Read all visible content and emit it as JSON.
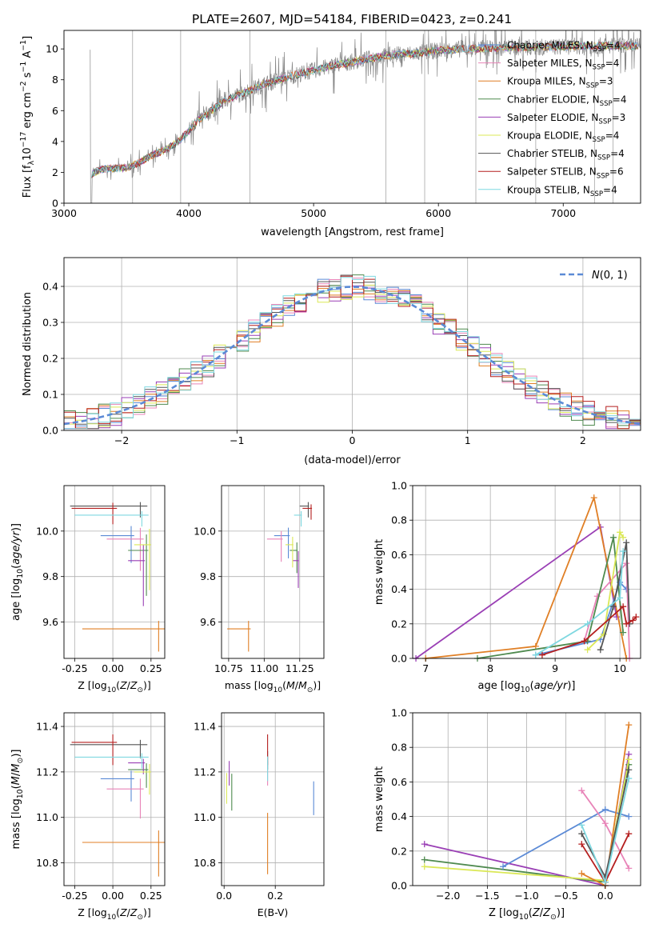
{
  "figure": {
    "title": "PLATE=2607, MJD=54184, FIBERID=0423, z=0.241"
  },
  "colors": {
    "chabrier_miles": "#5b8ad6",
    "salpeter_miles": "#e884b8",
    "kroupa_miles": "#e07f25",
    "chabrier_elodie": "#4f8a4f",
    "salpeter_elodie": "#9a3fb5",
    "kroupa_elodie": "#dbe857",
    "chabrier_stelib": "#555555",
    "salpeter_stelib": "#b51f1f",
    "kroupa_stelib": "#7fd8e0",
    "data": "#888888"
  },
  "chart_data": [
    {
      "id": "spectrum",
      "type": "line",
      "xlabel": "wavelength [Angstrom, rest frame]",
      "ylabel": "Flux [f_λ10^-17 erg cm^-2 s^-1 A^-1]",
      "xlim": [
        3000,
        7620
      ],
      "ylim": [
        0,
        11.2
      ],
      "xticks": [
        3000,
        4000,
        5000,
        6000,
        7000
      ],
      "yticks": [
        0,
        2,
        4,
        6,
        8,
        10
      ],
      "grid": false,
      "legend_position": "right",
      "legend": [
        "Chabrier MILES, N_SSP=4",
        "Salpeter MILES, N_SSP=4",
        "Kroupa MILES, N_SSP=3",
        "Chabrier ELODIE, N_SSP=4",
        "Salpeter ELODIE, N_SSP=3",
        "Kroupa ELODIE, N_SSP=4",
        "Chabrier STELIB, N_SSP=4",
        "Salpeter STELIB, N_SSP=6",
        "Kroupa STELIB, N_SSP=4"
      ],
      "continuum": {
        "x": [
          3220,
          3300,
          3400,
          3500,
          3600,
          3700,
          3800,
          3900,
          3980,
          4050,
          4150,
          4300,
          4450,
          4600,
          4800,
          5000,
          5200,
          5400,
          5600,
          5800,
          6000,
          6200,
          6400,
          6600,
          6800,
          7000,
          7200,
          7400,
          7600
        ],
        "y": [
          1.9,
          2.2,
          2.25,
          2.3,
          2.6,
          3.1,
          3.4,
          3.9,
          4.5,
          5.2,
          5.8,
          6.7,
          7.2,
          7.7,
          8.2,
          8.6,
          9.0,
          9.3,
          9.6,
          9.7,
          9.9,
          10.0,
          10.05,
          10.1,
          10.1,
          10.15,
          10.2,
          10.2,
          10.2
        ]
      }
    },
    {
      "id": "residuals",
      "type": "histogram",
      "xlabel": "(data-model)/error",
      "ylabel": "Normed distribution",
      "xlim": [
        -2.5,
        2.5
      ],
      "ylim": [
        0,
        0.48
      ],
      "xticks": [
        -2,
        -1,
        0,
        1,
        2
      ],
      "yticks": [
        0.0,
        0.1,
        0.2,
        0.3,
        0.4
      ],
      "grid": true,
      "legend_position": "top-right",
      "reference_curve": "N(0,1)"
    },
    {
      "id": "z_vs_age",
      "type": "scatter",
      "xlabel": "Z [log10(Z/Z⊙)]",
      "ylabel": "age  [log10(age/yr)]",
      "xlim": [
        -0.32,
        0.34
      ],
      "ylim": [
        9.44,
        10.2
      ],
      "xticks": [
        -0.25,
        0.0,
        0.25
      ],
      "yticks": [
        9.6,
        9.8,
        10.0
      ],
      "grid": true,
      "points": [
        {
          "x": 0.12,
          "y": 9.98,
          "xerr": 0.2,
          "yerr": 0.12,
          "color": "chabrier_miles"
        },
        {
          "x": 0.18,
          "y": 9.965,
          "xerr": 0.22,
          "yerr": 0.14,
          "color": "salpeter_miles"
        },
        {
          "x": 0.3,
          "y": 9.57,
          "xerr": 0.5,
          "yerr": 0.1,
          "color": "kroupa_miles"
        },
        {
          "x": 0.22,
          "y": 9.915,
          "xerr": 0.12,
          "yerr": 0.2,
          "color": "chabrier_elodie"
        },
        {
          "x": 0.2,
          "y": 9.87,
          "xerr": 0.1,
          "yerr": 0.2,
          "color": "salpeter_elodie"
        },
        {
          "x": 0.24,
          "y": 9.94,
          "xerr": 0.1,
          "yerr": 0.2,
          "color": "kroupa_elodie"
        },
        {
          "x": 0.18,
          "y": 10.11,
          "xerr": 0.46,
          "yerr": 0.05,
          "color": "chabrier_stelib"
        },
        {
          "x": 0.0,
          "y": 10.1,
          "xerr": 0.27,
          "yerr": 0.07,
          "color": "salpeter_stelib"
        },
        {
          "x": 0.19,
          "y": 10.07,
          "xerr": 0.44,
          "yerr": 0.05,
          "color": "kroupa_stelib"
        }
      ]
    },
    {
      "id": "mass_vs_age",
      "type": "scatter",
      "xlabel": "mass [log10(M/M⊙)]",
      "ylabel": "",
      "xlim": [
        10.7,
        11.42
      ],
      "ylim": [
        9.44,
        10.2
      ],
      "xticks": [
        10.75,
        11.0,
        11.25
      ],
      "yticks": [
        9.6,
        9.8,
        10.0
      ],
      "grid": true,
      "points": [
        {
          "x": 11.17,
          "y": 9.98,
          "xerr": 0.1,
          "yerr": 0.1,
          "color": "chabrier_miles"
        },
        {
          "x": 11.12,
          "y": 9.965,
          "xerr": 0.1,
          "yerr": 0.1,
          "color": "salpeter_miles"
        },
        {
          "x": 10.89,
          "y": 9.57,
          "xerr": 0.15,
          "yerr": 0.1,
          "color": "kroupa_miles"
        },
        {
          "x": 11.23,
          "y": 9.915,
          "xerr": 0.05,
          "yerr": 0.1,
          "color": "chabrier_elodie"
        },
        {
          "x": 11.24,
          "y": 9.87,
          "xerr": 0.04,
          "yerr": 0.12,
          "color": "salpeter_elodie"
        },
        {
          "x": 11.2,
          "y": 9.94,
          "xerr": 0.05,
          "yerr": 0.1,
          "color": "kroupa_elodie"
        },
        {
          "x": 11.31,
          "y": 10.11,
          "xerr": 0.06,
          "yerr": 0.05,
          "color": "chabrier_stelib"
        },
        {
          "x": 11.33,
          "y": 10.1,
          "xerr": 0.06,
          "yerr": 0.05,
          "color": "salpeter_stelib"
        },
        {
          "x": 11.26,
          "y": 10.07,
          "xerr": 0.05,
          "yerr": 0.05,
          "color": "kroupa_stelib"
        }
      ]
    },
    {
      "id": "age_vs_weight",
      "type": "line",
      "xlabel": "age  [log10(age/yr)]",
      "ylabel": "mass weight",
      "xlim": [
        6.8,
        10.32
      ],
      "ylim": [
        0,
        1
      ],
      "xticks": [
        7,
        8,
        9,
        10
      ],
      "yticks": [
        0.0,
        0.2,
        0.4,
        0.6,
        0.8,
        1.0
      ],
      "grid": true,
      "series": [
        {
          "color": "salpeter_elodie",
          "x": [
            6.85,
            9.7,
            9.95
          ],
          "y": [
            0.0,
            0.76,
            0.24
          ]
        },
        {
          "color": "kroupa_miles",
          "x": [
            7.0,
            8.7,
            9.6,
            10.1
          ],
          "y": [
            0.0,
            0.07,
            0.93,
            0.0
          ]
        },
        {
          "color": "chabrier_miles",
          "x": [
            8.7,
            9.7,
            10.0,
            10.1
          ],
          "y": [
            0.02,
            0.11,
            0.44,
            0.4
          ]
        },
        {
          "color": "salpeter_miles",
          "x": [
            9.45,
            9.65,
            10.1,
            10.15
          ],
          "y": [
            0.1,
            0.36,
            0.55,
            0.0
          ]
        },
        {
          "color": "chabrier_elodie",
          "x": [
            7.8,
            9.5,
            9.9,
            10.05
          ],
          "y": [
            0.0,
            0.1,
            0.7,
            0.15
          ]
        },
        {
          "color": "kroupa_elodie",
          "x": [
            9.5,
            9.75,
            10.0,
            10.05
          ],
          "y": [
            0.05,
            0.14,
            0.73,
            0.7
          ]
        },
        {
          "color": "chabrier_stelib",
          "x": [
            9.7,
            9.9,
            10.1,
            10.15
          ],
          "y": [
            0.05,
            0.3,
            0.67,
            0.2
          ]
        },
        {
          "color": "salpeter_stelib",
          "x": [
            8.8,
            9.45,
            10.05,
            10.1,
            10.2,
            10.25
          ],
          "y": [
            0.02,
            0.1,
            0.3,
            0.2,
            0.22,
            0.24
          ]
        },
        {
          "color": "kroupa_stelib",
          "x": [
            8.7,
            9.5,
            10.0,
            10.05
          ],
          "y": [
            0.02,
            0.2,
            0.35,
            0.62
          ]
        }
      ]
    },
    {
      "id": "z_vs_mass",
      "type": "scatter",
      "xlabel": "Z [log10(Z/Z⊙)]",
      "ylabel": "mass [log10(M/M⊙)]",
      "xlim": [
        -0.32,
        0.34
      ],
      "ylim": [
        10.7,
        11.46
      ],
      "xticks": [
        -0.25,
        0.0,
        0.25
      ],
      "yticks": [
        10.8,
        11.0,
        11.2,
        11.4
      ],
      "grid": true,
      "points": [
        {
          "x": 0.12,
          "y": 11.17,
          "xerr": 0.2,
          "yerr": 0.1,
          "color": "chabrier_miles"
        },
        {
          "x": 0.18,
          "y": 11.125,
          "xerr": 0.22,
          "yerr": 0.13,
          "color": "salpeter_miles"
        },
        {
          "x": 0.3,
          "y": 10.89,
          "xerr": 0.5,
          "yerr": 0.15,
          "color": "kroupa_miles"
        },
        {
          "x": 0.22,
          "y": 11.21,
          "xerr": 0.12,
          "yerr": 0.08,
          "color": "chabrier_elodie"
        },
        {
          "x": 0.2,
          "y": 11.24,
          "xerr": 0.1,
          "yerr": 0.05,
          "color": "salpeter_elodie"
        },
        {
          "x": 0.24,
          "y": 11.2,
          "xerr": 0.1,
          "yerr": 0.1,
          "color": "kroupa_elodie"
        },
        {
          "x": 0.18,
          "y": 11.32,
          "xerr": 0.46,
          "yerr": 0.06,
          "color": "chabrier_stelib"
        },
        {
          "x": 0.0,
          "y": 11.33,
          "xerr": 0.27,
          "yerr": 0.1,
          "color": "salpeter_stelib"
        },
        {
          "x": 0.19,
          "y": 11.265,
          "xerr": 0.44,
          "yerr": 0.05,
          "color": "kroupa_stelib"
        }
      ]
    },
    {
      "id": "ebv_vs_mass",
      "type": "scatter",
      "xlabel": "E(B-V)",
      "ylabel": "",
      "xlim": [
        -0.01,
        0.39
      ],
      "ylim": [
        10.7,
        11.46
      ],
      "xticks": [
        0.0,
        0.2
      ],
      "yticks": [
        10.8,
        11.0,
        11.2,
        11.4
      ],
      "grid": true,
      "points": [
        {
          "x": 0.35,
          "y": 11.12,
          "xerr": 0.0,
          "yerr": 0.11,
          "color": "chabrier_miles"
        },
        {
          "x": 0.17,
          "y": 11.22,
          "xerr": 0.0,
          "yerr": 0.08,
          "color": "salpeter_miles"
        },
        {
          "x": 0.17,
          "y": 10.95,
          "xerr": 0.0,
          "yerr": 0.2,
          "color": "kroupa_miles"
        },
        {
          "x": 0.03,
          "y": 11.15,
          "xerr": 0.0,
          "yerr": 0.12,
          "color": "chabrier_elodie"
        },
        {
          "x": 0.02,
          "y": 11.22,
          "xerr": 0.0,
          "yerr": 0.08,
          "color": "salpeter_elodie"
        },
        {
          "x": 0.01,
          "y": 11.16,
          "xerr": 0.0,
          "yerr": 0.1,
          "color": "kroupa_elodie"
        },
        {
          "x": 0.17,
          "y": 11.27,
          "xerr": 0.0,
          "yerr": 0.06,
          "color": "chabrier_stelib"
        },
        {
          "x": 0.17,
          "y": 11.33,
          "xerr": 0.0,
          "yerr": 0.1,
          "color": "salpeter_stelib"
        },
        {
          "x": 0.17,
          "y": 11.24,
          "xerr": 0.0,
          "yerr": 0.08,
          "color": "kroupa_stelib"
        }
      ]
    },
    {
      "id": "z_vs_weight",
      "type": "line",
      "xlabel": "Z [log10(Z/Z⊙)]",
      "ylabel": "mass weight",
      "xlim": [
        -2.45,
        0.45
      ],
      "ylim": [
        0,
        1
      ],
      "xticks": [
        -2.0,
        -1.5,
        -1.0,
        -0.5,
        0.0
      ],
      "yticks": [
        0.0,
        0.2,
        0.4,
        0.6,
        0.8,
        1.0
      ],
      "grid": true,
      "series": [
        {
          "color": "salpeter_elodie",
          "x": [
            -2.3,
            0.0,
            0.3
          ],
          "y": [
            0.24,
            0.0,
            0.76
          ]
        },
        {
          "color": "chabrier_elodie",
          "x": [
            -2.3,
            0.0,
            0.3
          ],
          "y": [
            0.15,
            0.02,
            0.7
          ]
        },
        {
          "color": "kroupa_elodie",
          "x": [
            -2.3,
            0.0,
            0.3
          ],
          "y": [
            0.11,
            0.03,
            0.73
          ]
        },
        {
          "color": "chabrier_miles",
          "x": [
            -1.3,
            0.0,
            0.3
          ],
          "y": [
            0.11,
            0.44,
            0.4
          ]
        },
        {
          "color": "salpeter_miles",
          "x": [
            -0.3,
            0.0,
            0.3
          ],
          "y": [
            0.55,
            0.36,
            0.1
          ]
        },
        {
          "color": "kroupa_miles",
          "x": [
            -0.3,
            0.0,
            0.3
          ],
          "y": [
            0.07,
            0.0,
            0.93
          ]
        },
        {
          "color": "chabrier_stelib",
          "x": [
            -0.3,
            0.0,
            0.3
          ],
          "y": [
            0.3,
            0.05,
            0.67
          ]
        },
        {
          "color": "salpeter_stelib",
          "x": [
            -0.3,
            0.0,
            0.3
          ],
          "y": [
            0.24,
            0.02,
            0.3
          ]
        },
        {
          "color": "kroupa_stelib",
          "x": [
            -0.3,
            0.0,
            0.3
          ],
          "y": [
            0.35,
            0.02,
            0.62
          ]
        }
      ]
    }
  ]
}
